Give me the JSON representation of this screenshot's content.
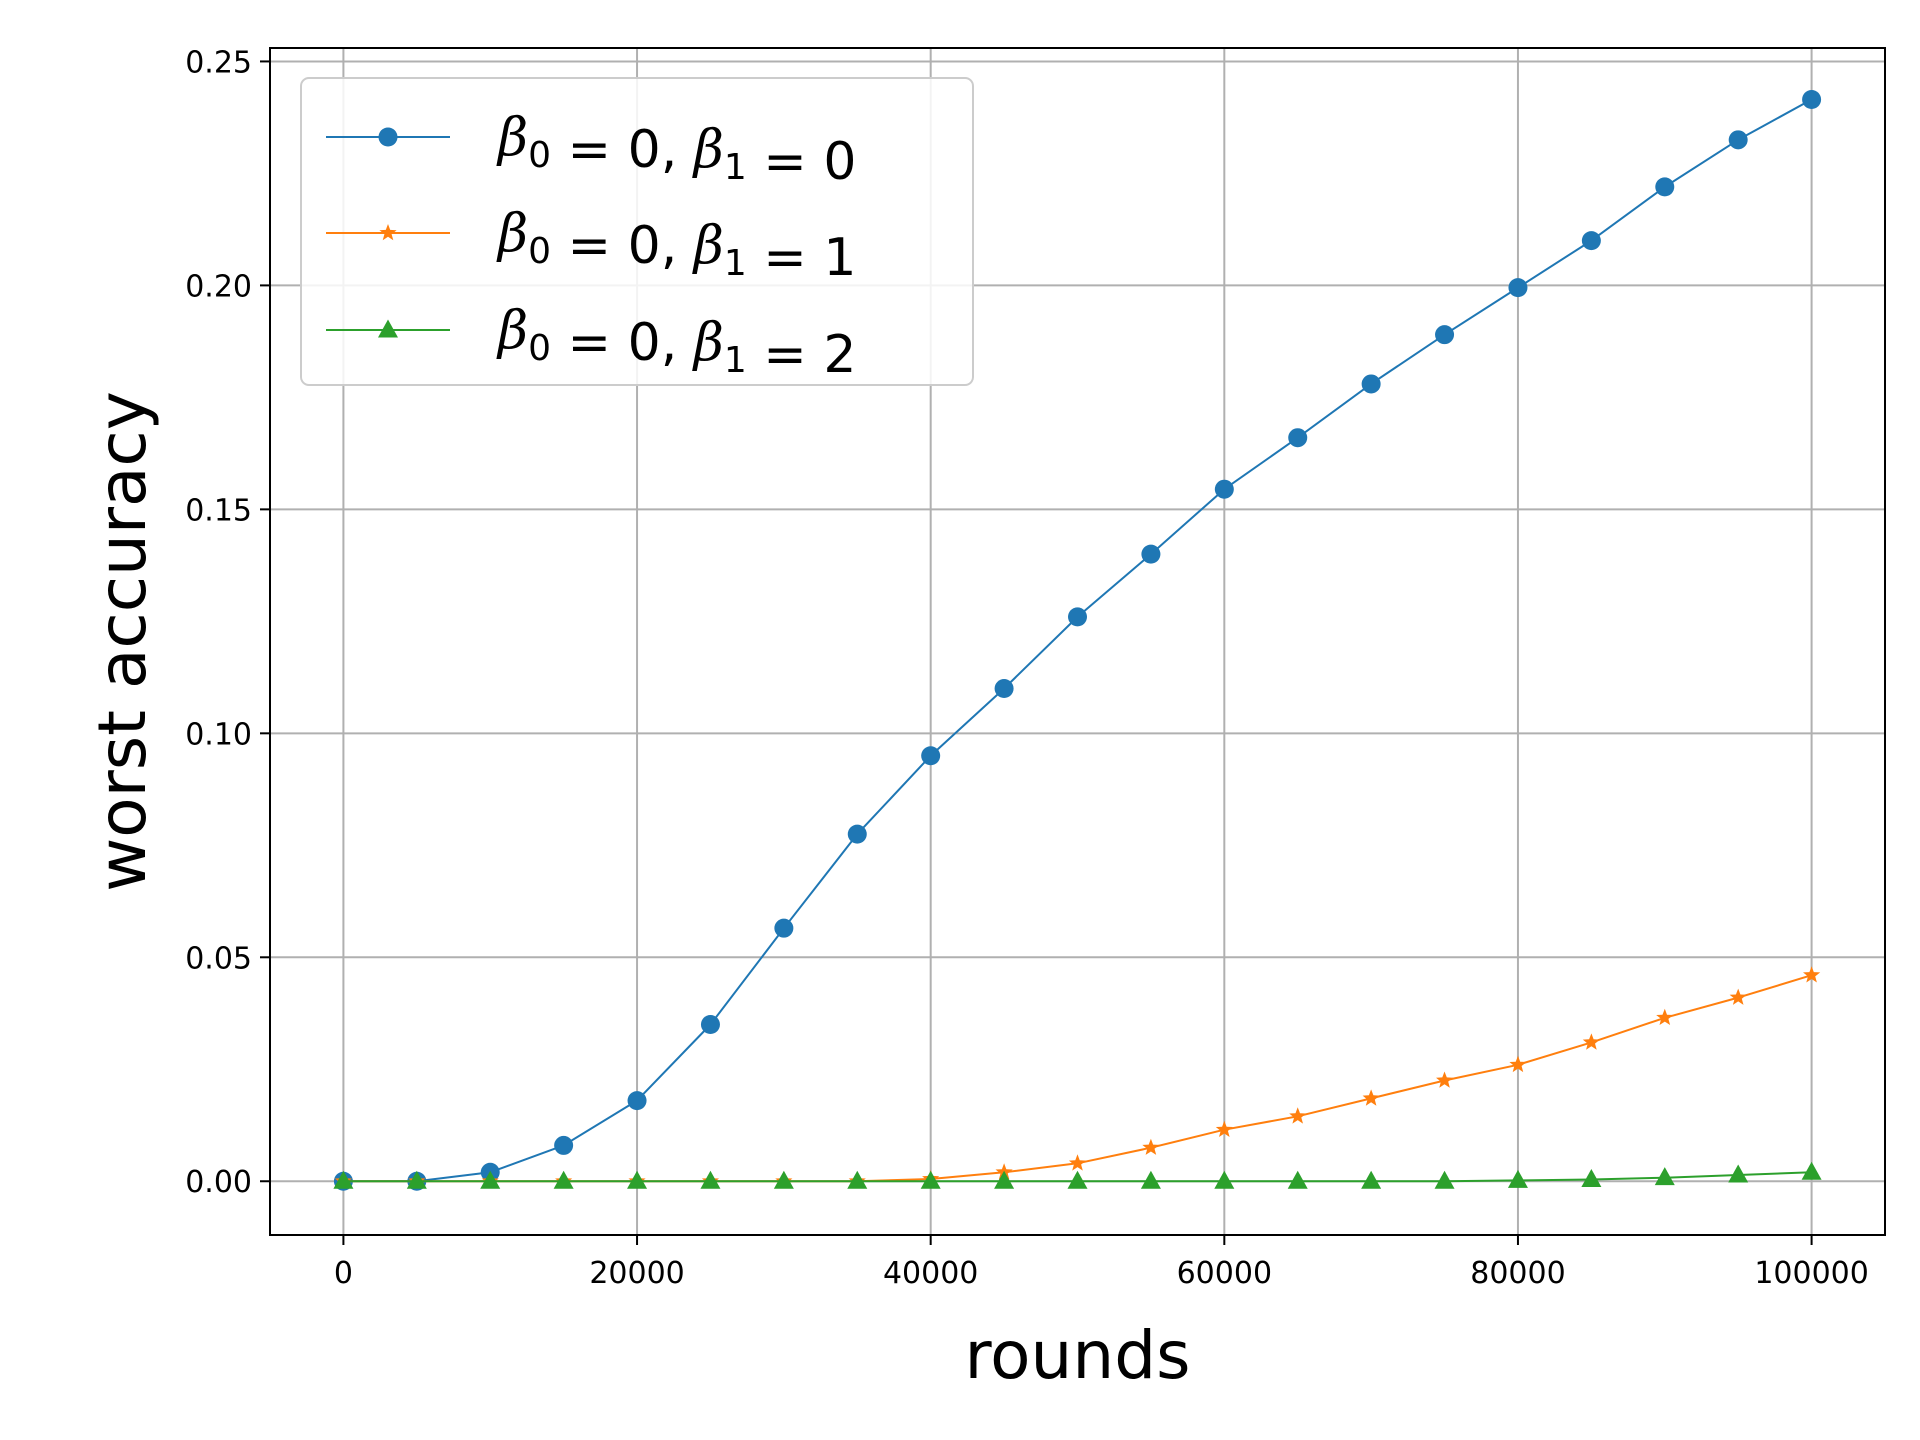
{
  "chart_data": {
    "type": "line",
    "xlabel": "rounds",
    "ylabel": "worst accuracy",
    "xlim": [
      -5000,
      105000
    ],
    "ylim": [
      -0.012,
      0.253
    ],
    "xticks": [
      0,
      20000,
      40000,
      60000,
      80000,
      100000
    ],
    "xtick_labels": [
      "0",
      "20000",
      "40000",
      "60000",
      "80000",
      "100000"
    ],
    "yticks": [
      0.0,
      0.05,
      0.1,
      0.15,
      0.2,
      0.25
    ],
    "ytick_labels": [
      "0.00",
      "0.05",
      "0.10",
      "0.15",
      "0.20",
      "0.25"
    ],
    "grid": true,
    "legend_position": "top-left",
    "x": [
      0,
      5000,
      10000,
      15000,
      20000,
      25000,
      30000,
      35000,
      40000,
      45000,
      50000,
      55000,
      60000,
      65000,
      70000,
      75000,
      80000,
      85000,
      90000,
      95000,
      100000
    ],
    "series": [
      {
        "name": "β0 = 0, β1 = 0",
        "legend": {
          "pre": "0",
          "mid": "0",
          "post": "0"
        },
        "color": "#1f77b4",
        "marker": "circle",
        "values": [
          0.0,
          0.0,
          0.002,
          0.008,
          0.018,
          0.035,
          0.0565,
          0.0775,
          0.095,
          0.11,
          0.126,
          0.14,
          0.1545,
          0.166,
          0.178,
          0.189,
          0.1995,
          0.21,
          0.222,
          0.2325,
          0.2415
        ]
      },
      {
        "name": "β0 = 0, β1 = 1",
        "legend": {
          "pre": "0",
          "mid": "0",
          "post": "1"
        },
        "color": "#ff7f0e",
        "marker": "star",
        "values": [
          0.0,
          0.0,
          0.0,
          0.0,
          0.0,
          0.0,
          0.0,
          0.0,
          0.0005,
          0.002,
          0.004,
          0.0075,
          0.0115,
          0.0145,
          0.0185,
          0.0225,
          0.026,
          0.031,
          0.0365,
          0.041,
          0.046
        ]
      },
      {
        "name": "β0 = 0, β1 = 2",
        "legend": {
          "pre": "0",
          "mid": "0",
          "post": "2"
        },
        "color": "#2ca02c",
        "marker": "triangle",
        "values": [
          0.0,
          0.0,
          0.0,
          0.0,
          0.0,
          0.0,
          0.0,
          0.0,
          0.0,
          0.0,
          0.0,
          0.0,
          0.0,
          0.0,
          0.0,
          0.0,
          0.0002,
          0.0004,
          0.0008,
          0.0014,
          0.002
        ]
      }
    ]
  }
}
